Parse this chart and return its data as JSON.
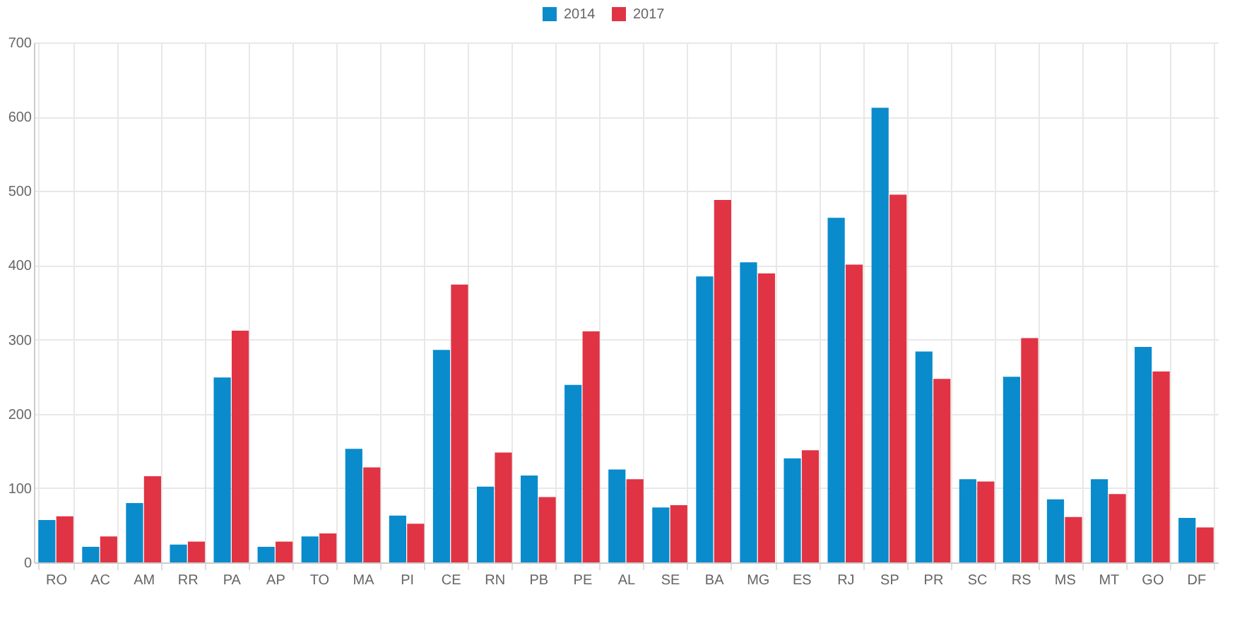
{
  "chart_data": {
    "type": "bar",
    "categories": [
      "RO",
      "AC",
      "AM",
      "RR",
      "PA",
      "AP",
      "TO",
      "MA",
      "PI",
      "CE",
      "RN",
      "PB",
      "PE",
      "AL",
      "SE",
      "BA",
      "MG",
      "ES",
      "RJ",
      "SP",
      "PR",
      "SC",
      "RS",
      "MS",
      "MT",
      "GO",
      "DF"
    ],
    "series": [
      {
        "name": "2014",
        "color": "#0a8bcc",
        "values": [
          57,
          21,
          80,
          24,
          249,
          21,
          35,
          153,
          63,
          286,
          102,
          117,
          239,
          125,
          74,
          385,
          404,
          140,
          464,
          612,
          284,
          112,
          250,
          85,
          112,
          290,
          60
        ]
      },
      {
        "name": "2017",
        "color": "#e03444",
        "values": [
          62,
          35,
          116,
          28,
          312,
          28,
          39,
          128,
          52,
          374,
          148,
          88,
          311,
          112,
          77,
          488,
          389,
          151,
          401,
          495,
          247,
          109,
          302,
          61,
          92,
          257,
          47
        ]
      }
    ],
    "ylim": [
      0,
      700
    ],
    "yticks": [
      0,
      100,
      200,
      300,
      400,
      500,
      600,
      700
    ],
    "grid": true,
    "legend": "top"
  }
}
